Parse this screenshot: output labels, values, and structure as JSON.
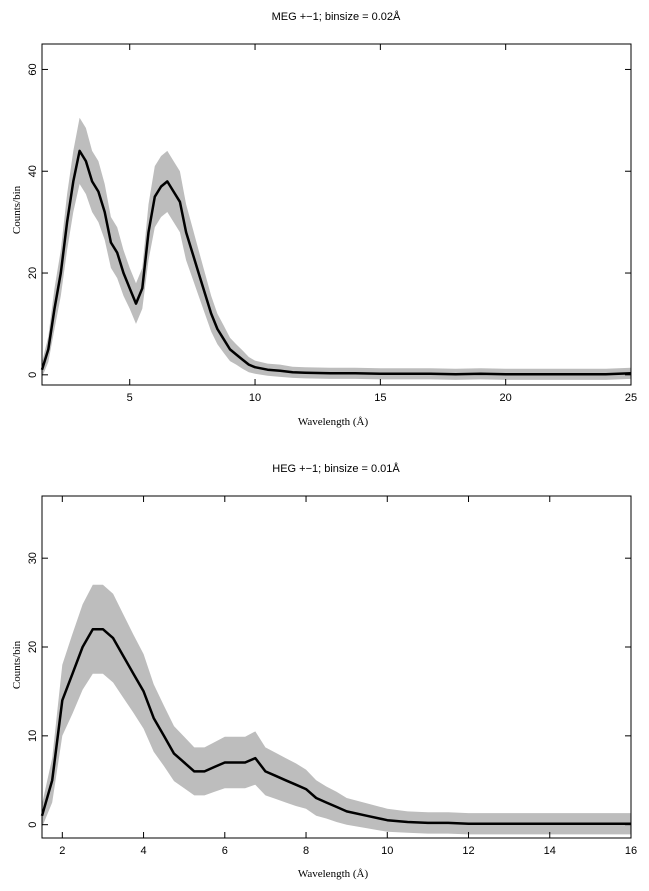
{
  "chart_data": [
    {
      "type": "line",
      "title": "MEG +−1; binsize = 0.02Å",
      "xlabel": "Wavelength (Å)",
      "ylabel": "Counts/bin",
      "xlim": [
        1.5,
        25
      ],
      "ylim": [
        -2,
        65
      ],
      "xticks": [
        5,
        10,
        15,
        20,
        25
      ],
      "yticks": [
        0,
        20,
        40,
        60
      ],
      "grid": false,
      "error_band_color": "#bdbdbd",
      "line_color": "#000000",
      "series": [
        {
          "x": [
            1.5,
            1.75,
            2.0,
            2.25,
            2.5,
            2.75,
            3.0,
            3.25,
            3.5,
            3.75,
            4.0,
            4.25,
            4.5,
            4.75,
            5.0,
            5.25,
            5.5,
            5.75,
            6.0,
            6.25,
            6.5,
            6.75,
            7.0,
            7.25,
            7.5,
            7.75,
            8.0,
            8.25,
            8.5,
            8.75,
            9.0,
            9.25,
            9.5,
            9.75,
            10.0,
            10.5,
            11.0,
            11.5,
            12.0,
            13.0,
            14.0,
            15.0,
            16.0,
            17.0,
            18.0,
            19.0,
            20.0,
            21.0,
            22.0,
            23.0,
            24.0,
            25.0
          ],
          "y": [
            1,
            5,
            13,
            20,
            30,
            38,
            44,
            42,
            38,
            36,
            32,
            26,
            24,
            20,
            17,
            14,
            17,
            28,
            35,
            37,
            38,
            36,
            34,
            28,
            24,
            20,
            16,
            12,
            9,
            7,
            5,
            4,
            3,
            2,
            1.5,
            1,
            0.8,
            0.5,
            0.4,
            0.3,
            0.3,
            0.2,
            0.2,
            0.2,
            0.1,
            0.2,
            0.1,
            0.1,
            0.1,
            0.1,
            0.1,
            0.3
          ],
          "err": [
            1.5,
            2.5,
            4,
            4.5,
            5.5,
            6,
            6.5,
            6.5,
            6,
            6,
            5.5,
            5,
            5,
            4.5,
            4,
            4,
            4,
            5.5,
            6,
            6,
            6,
            6,
            6,
            5.5,
            5,
            4.5,
            4,
            3.5,
            3,
            2.7,
            2.3,
            2,
            1.8,
            1.5,
            1.3,
            1.2,
            1.2,
            1.1,
            1.1,
            1.1,
            1.1,
            1.1,
            1.1,
            1.1,
            1.1,
            1.1,
            1.1,
            1.1,
            1.1,
            1.1,
            1.1,
            1.1
          ]
        }
      ]
    },
    {
      "type": "line",
      "title": "HEG +−1; binsize = 0.01Å",
      "xlabel": "Wavelength (Å)",
      "ylabel": "Counts/bin",
      "xlim": [
        1.5,
        16
      ],
      "ylim": [
        -1.5,
        37
      ],
      "xticks": [
        2,
        4,
        6,
        8,
        10,
        12,
        14,
        16
      ],
      "yticks": [
        0,
        10,
        20,
        30
      ],
      "grid": false,
      "error_band_color": "#bdbdbd",
      "line_color": "#000000",
      "series": [
        {
          "x": [
            1.5,
            1.75,
            2.0,
            2.25,
            2.5,
            2.75,
            3.0,
            3.25,
            3.5,
            3.75,
            4.0,
            4.25,
            4.5,
            4.75,
            5.0,
            5.25,
            5.5,
            5.75,
            6.0,
            6.25,
            6.5,
            6.75,
            7.0,
            7.25,
            7.5,
            7.75,
            8.0,
            8.25,
            8.5,
            8.75,
            9.0,
            9.5,
            10.0,
            10.5,
            11.0,
            11.5,
            12.0,
            12.5,
            13.0,
            14.0,
            15.0,
            16.0
          ],
          "y": [
            1,
            5,
            14,
            17,
            20,
            22,
            22,
            21,
            19,
            17,
            15,
            12,
            10,
            8,
            7,
            6,
            6,
            6.5,
            7,
            7,
            7,
            7.5,
            6,
            5.5,
            5,
            4.5,
            4,
            3,
            2.5,
            2,
            1.5,
            1,
            0.5,
            0.3,
            0.2,
            0.2,
            0.1,
            0.1,
            0.1,
            0.1,
            0.1,
            0.1
          ],
          "err": [
            1.3,
            2.5,
            4,
            4.5,
            4.8,
            5,
            5,
            5,
            4.7,
            4.4,
            4.2,
            3.8,
            3.4,
            3.1,
            2.9,
            2.7,
            2.7,
            2.8,
            2.9,
            2.9,
            2.9,
            3,
            2.7,
            2.6,
            2.5,
            2.4,
            2.2,
            2,
            1.8,
            1.7,
            1.5,
            1.4,
            1.3,
            1.2,
            1.2,
            1.2,
            1.2,
            1.2,
            1.2,
            1.2,
            1.2,
            1.2
          ]
        }
      ]
    }
  ]
}
